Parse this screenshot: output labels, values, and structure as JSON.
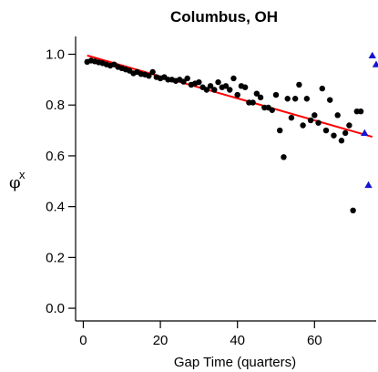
{
  "chart_data": {
    "type": "scatter",
    "title": "Columbus, OH",
    "xlabel": "Gap Time (quarters)",
    "ylabel": "φ",
    "ylabel_superscript": "x",
    "xlim": [
      -2,
      76
    ],
    "ylim": [
      -0.05,
      1.07
    ],
    "xticks": [
      0,
      20,
      40,
      60
    ],
    "xtick_labels": [
      "0",
      "20",
      "40",
      "60"
    ],
    "yticks": [
      0.0,
      0.2,
      0.4,
      0.6,
      0.8,
      1.0
    ],
    "ytick_labels": [
      "0.0",
      "0.2",
      "0.4",
      "0.6",
      "0.8",
      "1.0"
    ],
    "grid": false,
    "series": [
      {
        "marker": "circle",
        "color": "#000000",
        "points": [
          [
            1,
            0.97
          ],
          [
            2,
            0.975
          ],
          [
            3,
            0.972
          ],
          [
            4,
            0.968
          ],
          [
            5,
            0.965
          ],
          [
            6,
            0.96
          ],
          [
            7,
            0.955
          ],
          [
            8,
            0.96
          ],
          [
            9,
            0.95
          ],
          [
            10,
            0.945
          ],
          [
            11,
            0.94
          ],
          [
            12,
            0.935
          ],
          [
            13,
            0.925
          ],
          [
            14,
            0.93
          ],
          [
            15,
            0.922
          ],
          [
            16,
            0.92
          ],
          [
            17,
            0.915
          ],
          [
            18,
            0.93
          ],
          [
            19,
            0.91
          ],
          [
            20,
            0.905
          ],
          [
            21,
            0.91
          ],
          [
            22,
            0.9
          ],
          [
            23,
            0.9
          ],
          [
            24,
            0.895
          ],
          [
            25,
            0.9
          ],
          [
            26,
            0.892
          ],
          [
            27,
            0.905
          ],
          [
            28,
            0.88
          ],
          [
            29,
            0.885
          ],
          [
            30,
            0.89
          ],
          [
            31,
            0.87
          ],
          [
            32,
            0.86
          ],
          [
            33,
            0.875
          ],
          [
            34,
            0.86
          ],
          [
            35,
            0.89
          ],
          [
            36,
            0.87
          ],
          [
            37,
            0.875
          ],
          [
            38,
            0.86
          ],
          [
            39,
            0.905
          ],
          [
            40,
            0.84
          ],
          [
            41,
            0.875
          ],
          [
            42,
            0.87
          ],
          [
            43,
            0.81
          ],
          [
            44,
            0.81
          ],
          [
            45,
            0.845
          ],
          [
            46,
            0.83
          ],
          [
            47,
            0.79
          ],
          [
            48,
            0.79
          ],
          [
            49,
            0.78
          ],
          [
            50,
            0.84
          ],
          [
            51,
            0.7
          ],
          [
            52,
            0.595
          ],
          [
            53,
            0.825
          ],
          [
            54,
            0.75
          ],
          [
            55,
            0.825
          ],
          [
            56,
            0.88
          ],
          [
            57,
            0.72
          ],
          [
            58,
            0.825
          ],
          [
            59,
            0.74
          ],
          [
            60,
            0.76
          ],
          [
            61,
            0.73
          ],
          [
            62,
            0.865
          ],
          [
            63,
            0.7
          ],
          [
            64,
            0.82
          ],
          [
            65,
            0.68
          ],
          [
            66,
            0.76
          ],
          [
            67,
            0.66
          ],
          [
            68,
            0.69
          ],
          [
            69,
            0.72
          ],
          [
            70,
            0.385
          ],
          [
            71,
            0.775
          ],
          [
            72,
            0.775
          ]
        ]
      },
      {
        "marker": "triangle",
        "color": "#1515d0",
        "points": [
          [
            73,
            0.69
          ],
          [
            74,
            0.485
          ],
          [
            75,
            0.995
          ],
          [
            76,
            0.96
          ]
        ]
      }
    ],
    "fit_line": {
      "color": "#ff0000",
      "x": [
        1,
        75
      ],
      "y": [
        0.995,
        0.675
      ]
    }
  }
}
